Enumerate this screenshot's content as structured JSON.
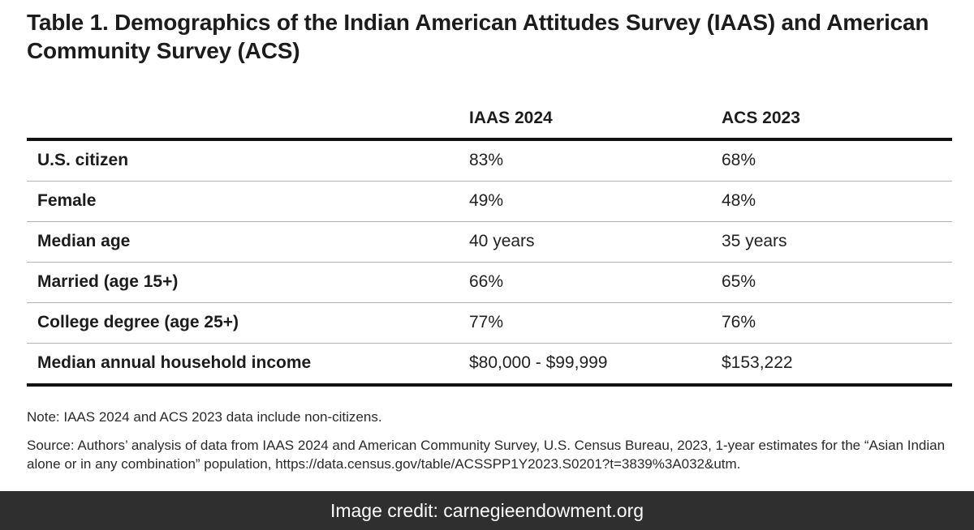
{
  "title": "Table 1. Demographics of the Indian American Attitudes Survey (IAAS) and American Community Survey (ACS)",
  "table": {
    "columns": [
      "",
      "IAAS 2024",
      "ACS 2023"
    ],
    "rows": [
      {
        "label": "U.S. citizen",
        "iaas": "83%",
        "acs": "68%"
      },
      {
        "label": "Female",
        "iaas": "49%",
        "acs": "48%"
      },
      {
        "label": "Median age",
        "iaas": "40 years",
        "acs": "35 years"
      },
      {
        "label": "Married (age 15+)",
        "iaas": "66%",
        "acs": "65%"
      },
      {
        "label": "College degree (age 25+)",
        "iaas": "77%",
        "acs": "76%"
      },
      {
        "label": "Median annual household income",
        "iaas": "$80,000 - $99,999",
        "acs": "$153,222"
      }
    ]
  },
  "note": "Note: IAAS 2024 and ACS 2023 data include non-citizens.",
  "source": "Source: Authors’ analysis of data from IAAS 2024 and American Community Survey, U.S. Census Bureau, 2023, 1-year estimates for the “Asian Indian alone or in any combination” population, https://data.census.gov/table/ACSSPP1Y2023.S0201?t=3839%3A032&utm.",
  "credit": "Image credit: carnegieendowment.org"
}
